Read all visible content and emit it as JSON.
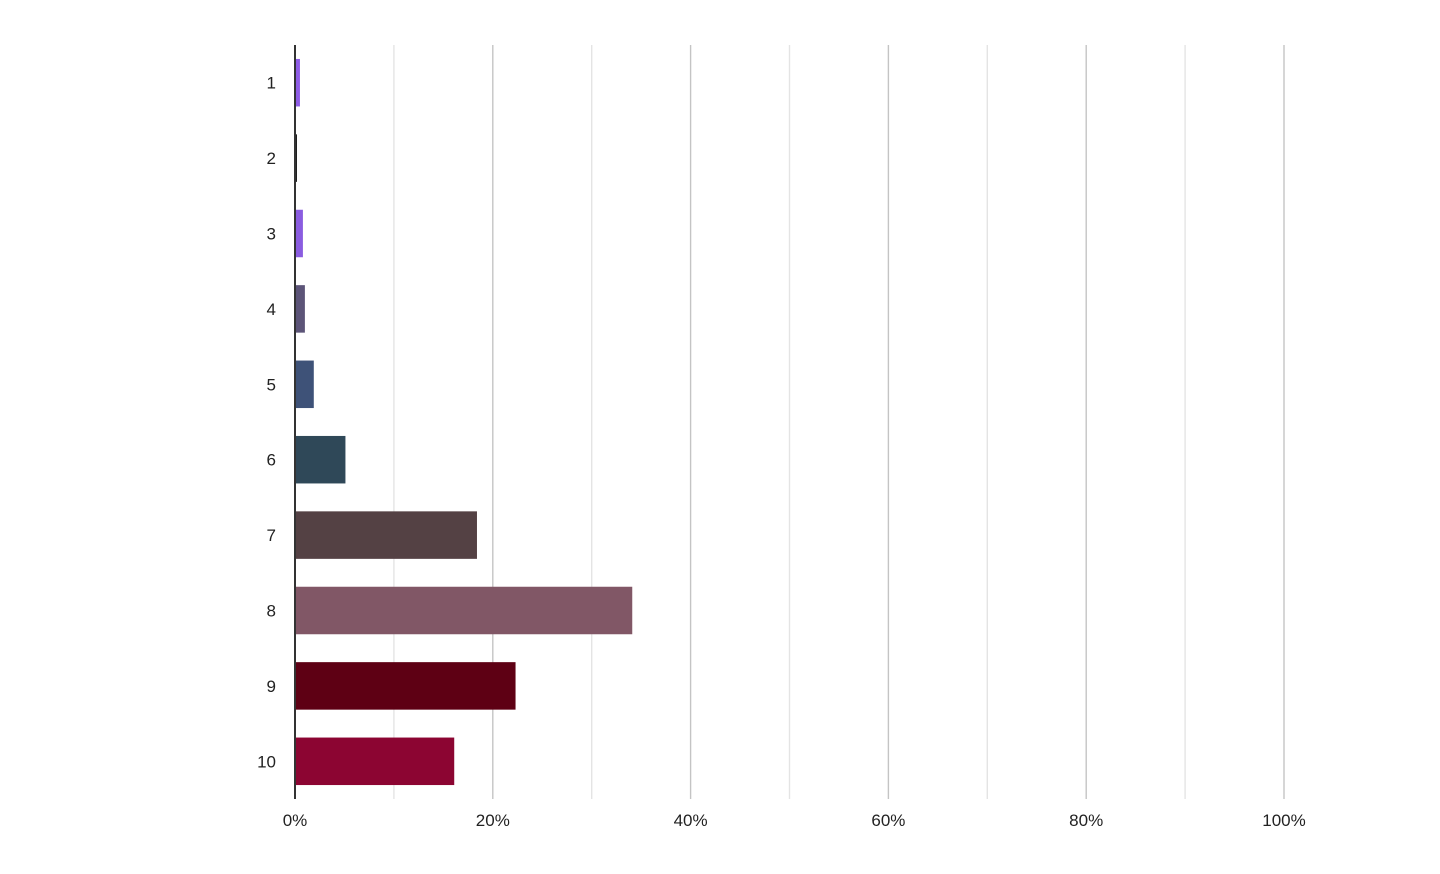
{
  "chart_data": {
    "type": "bar",
    "orientation": "horizontal",
    "categories": [
      "1",
      "2",
      "3",
      "4",
      "5",
      "6",
      "7",
      "8",
      "9",
      "10"
    ],
    "values": [
      0.5,
      0.2,
      0.8,
      1.0,
      1.9,
      5.1,
      18.4,
      34.1,
      22.3,
      16.1
    ],
    "colors": [
      "#8e5ce6",
      "#1a1a1a",
      "#8a5ce0",
      "#5c5478",
      "#3e5278",
      "#2f4858",
      "#544144",
      "#815766",
      "#5e0014",
      "#8c0532"
    ],
    "xlim": [
      0,
      100
    ],
    "xticks": [
      "0%",
      "20%",
      "40%",
      "60%",
      "80%",
      "100%"
    ],
    "grid": true,
    "title": "",
    "xlabel": "",
    "ylabel": ""
  }
}
